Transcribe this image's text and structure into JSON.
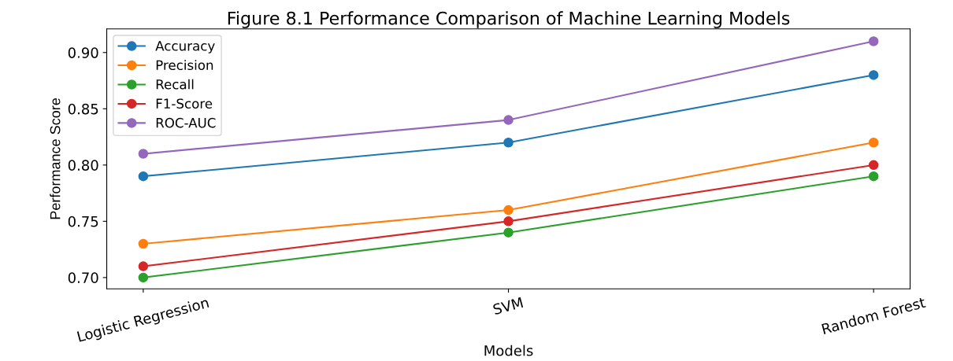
{
  "chart_data": {
    "type": "line",
    "title": "Figure 8.1 Performance Comparison of Machine Learning Models",
    "xlabel": "Models",
    "ylabel": "Performance Score",
    "categories": [
      "Logistic Regression",
      "SVM",
      "Random Forest"
    ],
    "series": [
      {
        "name": "Accuracy",
        "color": "#1f77b4",
        "values": [
          0.79,
          0.82,
          0.88
        ]
      },
      {
        "name": "Precision",
        "color": "#ff7f0e",
        "values": [
          0.73,
          0.76,
          0.82
        ]
      },
      {
        "name": "Recall",
        "color": "#2ca02c",
        "values": [
          0.7,
          0.74,
          0.79
        ]
      },
      {
        "name": "F1-Score",
        "color": "#d62728",
        "values": [
          0.71,
          0.75,
          0.8
        ]
      },
      {
        "name": "ROC-AUC",
        "color": "#9467bd",
        "values": [
          0.81,
          0.84,
          0.91
        ]
      }
    ],
    "ylim": [
      0.69,
      0.921
    ],
    "yticks": [
      {
        "value": 0.7,
        "label": "0.70"
      },
      0.75,
      {
        "value": 0.8,
        "label": "0.80"
      },
      0.85,
      {
        "value": 0.9,
        "label": "0.90"
      }
    ],
    "grid": false,
    "legend": "top left",
    "marker": "circle",
    "line_style": "solid"
  }
}
